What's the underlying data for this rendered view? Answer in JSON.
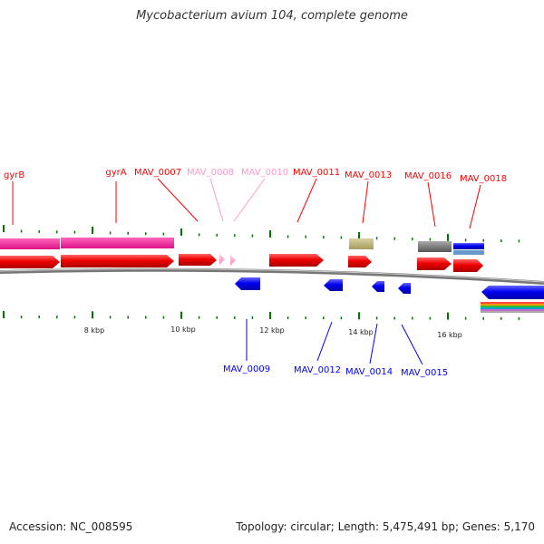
{
  "title": "Mycobacterium avium 104, complete genome",
  "footer": {
    "accession": "Accession: NC_008595",
    "summary": "Topology: circular; Length: 5,475,491 bp; Genes: 5,170"
  },
  "colors": {
    "forward_gene": "#ff0000",
    "forward_gene_faded": "#ff99cc",
    "reverse_gene": "#0000ff",
    "rna_track": "#ee1188",
    "backbone": "#888888",
    "tick": "#007700"
  },
  "scale_labels": [
    "8 kbp",
    "10 kbp",
    "12 kbp",
    "14 kbp",
    "16 kbp"
  ],
  "genes": {
    "upper": [
      {
        "name": "gyrB",
        "color": "#ff0000"
      },
      {
        "name": "gyrA",
        "color": "#ff0000"
      },
      {
        "name": "MAV_0007",
        "color": "#ff0000"
      },
      {
        "name": "MAV_0008",
        "color": "#ff99cc"
      },
      {
        "name": "MAV_0010",
        "color": "#ff99cc"
      },
      {
        "name": "MAV_0011",
        "color": "#ff0000"
      },
      {
        "name": "MAV_0013",
        "color": "#ff0000"
      },
      {
        "name": "MAV_0016",
        "color": "#ff0000"
      },
      {
        "name": "MAV_0018",
        "color": "#ff0000"
      }
    ],
    "lower": [
      {
        "name": "MAV_0009",
        "color": "#0000ff"
      },
      {
        "name": "MAV_0012",
        "color": "#0000ff"
      },
      {
        "name": "MAV_0014",
        "color": "#0000ff"
      },
      {
        "name": "MAV_0015",
        "color": "#0000ff"
      }
    ]
  }
}
